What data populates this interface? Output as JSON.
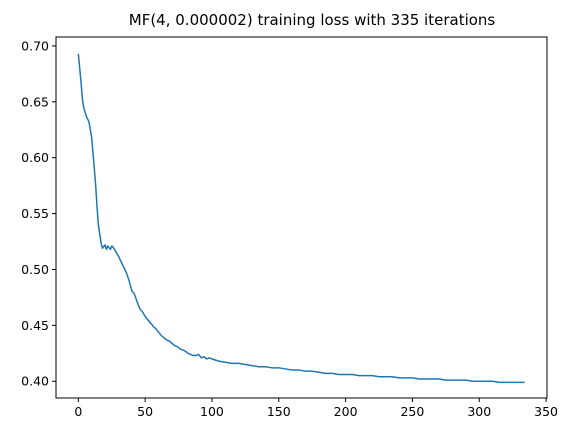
{
  "chart_data": {
    "type": "line",
    "title": "MF(4, 0.000002) training loss with 335 iterations",
    "xlabel": "",
    "ylabel": "",
    "xlim": [
      -16.7,
      350.7
    ],
    "ylim": [
      0.385,
      0.708
    ],
    "grid": false,
    "legend": "none",
    "x_ticks": [
      0,
      50,
      100,
      150,
      200,
      250,
      300,
      350
    ],
    "x_tick_labels": [
      "0",
      "50",
      "100",
      "150",
      "200",
      "250",
      "300",
      "350"
    ],
    "y_ticks": [
      0.4,
      0.45,
      0.5,
      0.55,
      0.6,
      0.65,
      0.7
    ],
    "y_tick_labels": [
      "0.40",
      "0.45",
      "0.50",
      "0.55",
      "0.60",
      "0.65",
      "0.70"
    ],
    "series": [
      {
        "color": "#1f77b4",
        "x": [
          0,
          2,
          3,
          4,
          6,
          8,
          10,
          12,
          13,
          14,
          15,
          16,
          17,
          18,
          20,
          21,
          22,
          24,
          25,
          26,
          28,
          30,
          32,
          34,
          36,
          38,
          40,
          42,
          44,
          45,
          46,
          48,
          50,
          52,
          54,
          55,
          56,
          58,
          60,
          62,
          64,
          66,
          68,
          70,
          72,
          74,
          76,
          78,
          80,
          82,
          84,
          86,
          88,
          90,
          92,
          94,
          96,
          98,
          100,
          105,
          110,
          115,
          120,
          125,
          130,
          135,
          140,
          145,
          150,
          155,
          160,
          165,
          170,
          175,
          180,
          185,
          190,
          195,
          200,
          205,
          210,
          215,
          220,
          225,
          230,
          235,
          240,
          245,
          250,
          255,
          260,
          265,
          270,
          275,
          280,
          285,
          290,
          295,
          300,
          305,
          310,
          315,
          320,
          325,
          330,
          334
        ],
        "y": [
          0.693,
          0.668,
          0.653,
          0.645,
          0.637,
          0.632,
          0.618,
          0.59,
          0.575,
          0.556,
          0.54,
          0.532,
          0.524,
          0.519,
          0.522,
          0.518,
          0.521,
          0.518,
          0.521,
          0.52,
          0.516,
          0.512,
          0.507,
          0.502,
          0.497,
          0.49,
          0.481,
          0.478,
          0.471,
          0.468,
          0.465,
          0.462,
          0.458,
          0.455,
          0.452,
          0.451,
          0.449,
          0.447,
          0.444,
          0.441,
          0.439,
          0.437,
          0.436,
          0.434,
          0.432,
          0.431,
          0.429,
          0.428,
          0.427,
          0.425,
          0.424,
          0.423,
          0.423,
          0.424,
          0.421,
          0.422,
          0.42,
          0.421,
          0.42,
          0.418,
          0.417,
          0.416,
          0.416,
          0.415,
          0.414,
          0.413,
          0.413,
          0.412,
          0.412,
          0.411,
          0.41,
          0.41,
          0.409,
          0.409,
          0.408,
          0.407,
          0.407,
          0.406,
          0.406,
          0.406,
          0.405,
          0.405,
          0.405,
          0.404,
          0.404,
          0.404,
          0.403,
          0.403,
          0.403,
          0.402,
          0.402,
          0.402,
          0.402,
          0.401,
          0.401,
          0.401,
          0.401,
          0.4,
          0.4,
          0.4,
          0.4,
          0.399,
          0.399,
          0.399,
          0.399,
          0.399
        ]
      }
    ]
  }
}
